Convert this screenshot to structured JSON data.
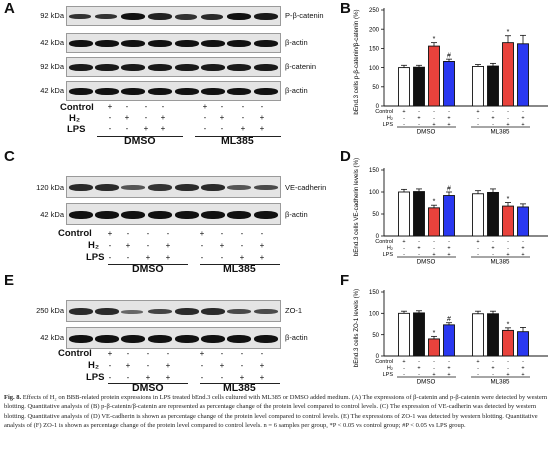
{
  "panels": {
    "A": {
      "letter": "A",
      "blots": [
        {
          "kda": "92 kDa",
          "protein": "P-β-catenin"
        },
        {
          "kda": "42 kDa",
          "protein": "β-actin"
        },
        {
          "kda": "92 kDa",
          "protein": "β-catenin"
        },
        {
          "kda": "42 kDa",
          "protein": "β-actin"
        }
      ]
    },
    "C": {
      "letter": "C",
      "blots": [
        {
          "kda": "120 kDa",
          "protein": "VE-cadherin"
        },
        {
          "kda": "42 kDa",
          "protein": "β-actin"
        }
      ]
    },
    "E": {
      "letter": "E",
      "blots": [
        {
          "kda": "250 kDa",
          "protein": "ZO-1"
        },
        {
          "kda": "42 kDa",
          "protein": "β-actin"
        }
      ]
    },
    "B": {
      "letter": "B"
    },
    "D": {
      "letter": "D"
    },
    "F": {
      "letter": "F"
    }
  },
  "conditions": {
    "labels": [
      "Control",
      "H₂",
      "LPS"
    ],
    "groups": [
      "DMSO",
      "ML385"
    ],
    "signs": [
      [
        "+",
        "-",
        "-",
        "-",
        "+",
        "-",
        "-",
        "-"
      ],
      [
        "-",
        "+",
        "-",
        "+",
        "-",
        "+",
        "-",
        "+"
      ],
      [
        "-",
        "-",
        "+",
        "+",
        "-",
        "-",
        "+",
        "+"
      ]
    ]
  },
  "chart_data": [
    {
      "type": "bar",
      "panel": "B",
      "ylabel": "bEnd.3 cells p-β-catenin/β-catenin (%)",
      "ylim": [
        0,
        250
      ],
      "yticks": [
        "0",
        "50",
        "100",
        "150",
        "200",
        "250"
      ],
      "groups": [
        "DMSO",
        "ML385"
      ],
      "values": [
        100,
        101,
        156,
        116,
        103,
        104,
        165,
        162
      ],
      "errors": [
        6,
        5,
        9,
        6,
        5,
        7,
        18,
        22
      ],
      "colors": [
        "#ffffff",
        "#111111",
        "#e8423c",
        "#2a38f0",
        "#ffffff",
        "#111111",
        "#e8423c",
        "#2a38f0"
      ],
      "marks": [
        "",
        "",
        "*",
        "#",
        "",
        "",
        "*",
        ""
      ],
      "row_labels": [
        "Control",
        "H₂",
        "LPS"
      ]
    },
    {
      "type": "bar",
      "panel": "D",
      "ylabel": "bEnd.3 cells VE-cadherin levels (%)",
      "ylim": [
        0,
        150
      ],
      "yticks": [
        "0",
        "50",
        "100",
        "150"
      ],
      "groups": [
        "DMSO",
        "ML385"
      ],
      "values": [
        100,
        101,
        64,
        92,
        96,
        99,
        68,
        66
      ],
      "errors": [
        6,
        6,
        6,
        8,
        7,
        8,
        8,
        7
      ],
      "colors": [
        "#ffffff",
        "#111111",
        "#e8423c",
        "#2a38f0",
        "#ffffff",
        "#111111",
        "#e8423c",
        "#2a38f0"
      ],
      "marks": [
        "",
        "",
        "*",
        "#",
        "",
        "",
        "*",
        ""
      ],
      "row_labels": [
        "Control",
        "H₂",
        "LPS"
      ]
    },
    {
      "type": "bar",
      "panel": "F",
      "ylabel": "bEnd.3 cells ZO-1 levels (%)",
      "ylim": [
        0,
        150
      ],
      "yticks": [
        "0",
        "50",
        "100",
        "150"
      ],
      "groups": [
        "DMSO",
        "ML385"
      ],
      "values": [
        100,
        101,
        40,
        73,
        99,
        99,
        60,
        57
      ],
      "errors": [
        5,
        5,
        6,
        5,
        6,
        6,
        6,
        10
      ],
      "colors": [
        "#ffffff",
        "#111111",
        "#e8423c",
        "#2a38f0",
        "#ffffff",
        "#111111",
        "#e8423c",
        "#2a38f0"
      ],
      "marks": [
        "",
        "",
        "*",
        "#",
        "",
        "",
        "*",
        ""
      ],
      "row_labels": [
        "Control",
        "H₂",
        "LPS"
      ]
    }
  ],
  "caption": {
    "lead": "Fig. 8.",
    "text": " Effects of H₂ on BBB-related protein expressions in LPS treated bEnd.3 cells cultured with ML385 or DMSO added medium. (A) The expressions of β-catenin and p-β-catenin were detected by western blotting. Quantitative analysis of (B) p-β-catenin/β-catenin are represented as percentage change of the protein level compared to control levels. (C) The expression of VE-cadherin was detected by western blotting. Quantitative analysis of (D) VE-cadherin is shown as percentage change of the protein level compared to control levels. (E) The expressions of ZO-1 was detected by western blotting. Quantitative analysis of (F) ZO-1 is shown as percentage change of the protein level compared to control levels. n = 6 samples per group, *P < 0.05 vs control group; #P < 0.05 vs LPS group."
  }
}
